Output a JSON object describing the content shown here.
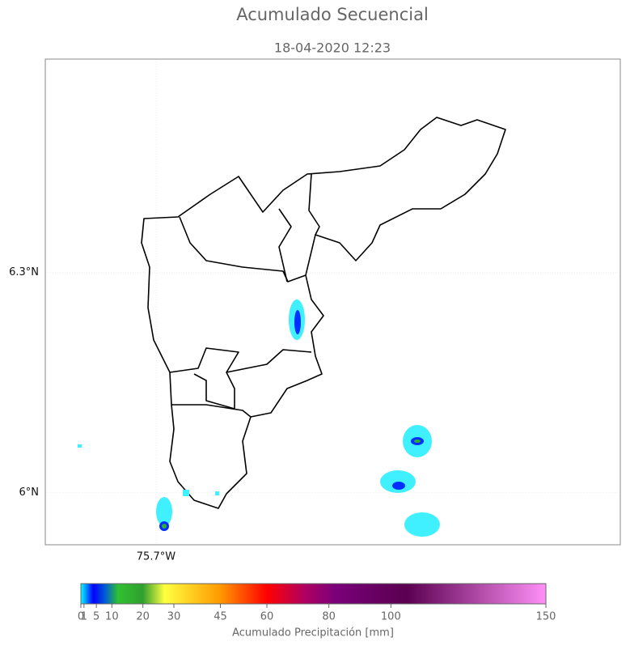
{
  "title": "Acumulado Secuencial",
  "subtitle": "18-04-2020 12:23",
  "map": {
    "xlim": [
      -75.851,
      -75.067
    ],
    "ylim": [
      5.929,
      6.591
    ],
    "xticks": [
      {
        "value": -75.7,
        "label": "75.7°W"
      }
    ],
    "yticks": [
      {
        "value": 6,
        "label": "6°N"
      },
      {
        "value": 6.3,
        "label": "6.3°N"
      }
    ],
    "grid": true
  },
  "colorbar": {
    "label": "Acumulado Precipitación [mm]",
    "range": [
      0,
      150
    ],
    "ticks": [
      0,
      1,
      5,
      10,
      20,
      30,
      45,
      60,
      80,
      100,
      150
    ],
    "colormap": [
      {
        "value": 0,
        "color": "#00ffff"
      },
      {
        "value": 4,
        "color": "#0000ff"
      },
      {
        "value": 8,
        "color": "#0060d0"
      },
      {
        "value": 12,
        "color": "#30c030"
      },
      {
        "value": 20,
        "color": "#30a030"
      },
      {
        "value": 27,
        "color": "#ffff40"
      },
      {
        "value": 45,
        "color": "#ff9900"
      },
      {
        "value": 60,
        "color": "#ff0000"
      },
      {
        "value": 72,
        "color": "#b00060"
      },
      {
        "value": 82,
        "color": "#7a007a"
      },
      {
        "value": 105,
        "color": "#5a0050"
      },
      {
        "value": 150,
        "color": "#ff90f8"
      }
    ]
  }
}
